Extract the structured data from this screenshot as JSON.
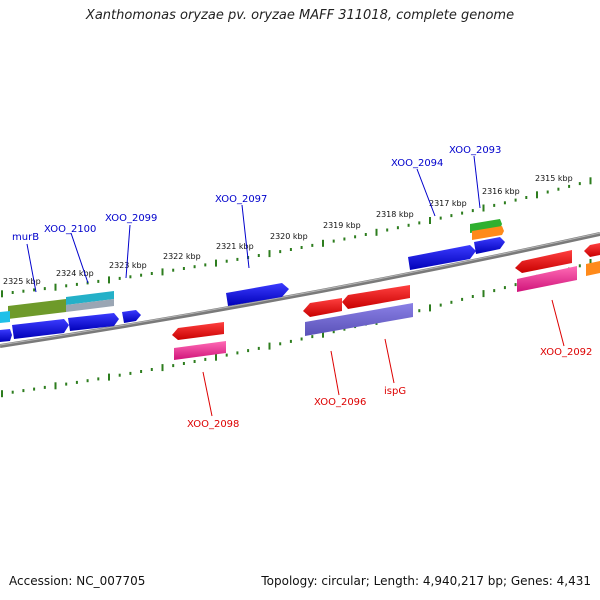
{
  "title": "Xanthomonas oryzae pv. oryzae MAFF 311018, complete genome",
  "footer": {
    "accession": "Accession: NC_007705",
    "stats": "Topology: circular; Length: 4,940,217 bp; Genes: 4,431"
  },
  "colors": {
    "backbone": "#7a7a7a",
    "tick": "#2d7d1e",
    "top_label": "#0000cc",
    "bottom_label": "#dd0000"
  },
  "ticks": [
    "2325 kbp",
    "2324 kbp",
    "2323 kbp",
    "2322 kbp",
    "2321 kbp",
    "2320 kbp",
    "2319 kbp",
    "2318 kbp",
    "2317 kbp",
    "2316 kbp",
    "2315 kbp"
  ],
  "top_labels": [
    "murB",
    "XOO_2100",
    "XOO_2099",
    "XOO_2097",
    "XOO_2094",
    "XOO_2093"
  ],
  "bottom_labels": [
    "XOO_2098",
    "XOO_2096",
    "ispG",
    "XOO_2092"
  ]
}
